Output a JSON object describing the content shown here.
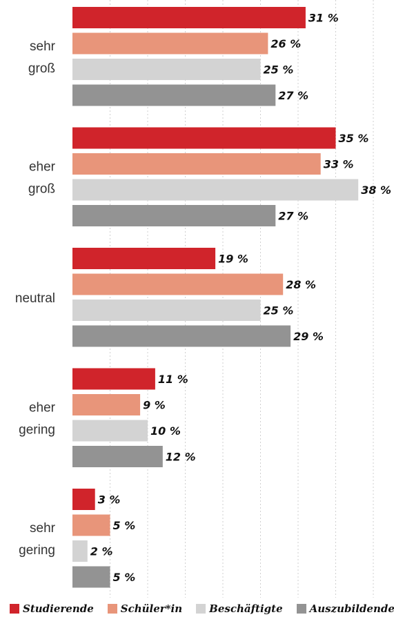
{
  "chart_data": {
    "type": "bar",
    "orientation": "horizontal",
    "categories": [
      "sehr\ngroß",
      "eher\ngroß",
      "neutral",
      "eher\ngering",
      "sehr\ngering"
    ],
    "series": [
      {
        "name": "Studierende",
        "color": "#d0242b",
        "values": [
          31,
          35,
          19,
          11,
          3
        ],
        "labels": [
          "31 %",
          "35 %",
          "19 %",
          "11 %",
          "3 %"
        ]
      },
      {
        "name": "Schüler*in",
        "color": "#e8957a",
        "values": [
          26,
          33,
          28,
          9,
          5
        ],
        "labels": [
          "26 %",
          "33 %",
          "28 %",
          "9 %",
          "5 %"
        ]
      },
      {
        "name": "Beschäftigte",
        "color": "#d3d3d3",
        "values": [
          25,
          38,
          25,
          10,
          2
        ],
        "labels": [
          "25 %",
          "38 %",
          "25 %",
          "10 %",
          "2 %"
        ]
      },
      {
        "name": "Auszubildende*r",
        "color": "#939393",
        "values": [
          27,
          27,
          29,
          12,
          5
        ],
        "labels": [
          "27 %",
          "27 %",
          "29 %",
          "12 %",
          "5 %"
        ]
      }
    ],
    "xlim": [
      0,
      40
    ],
    "grid": true,
    "legend_position": "bottom"
  }
}
